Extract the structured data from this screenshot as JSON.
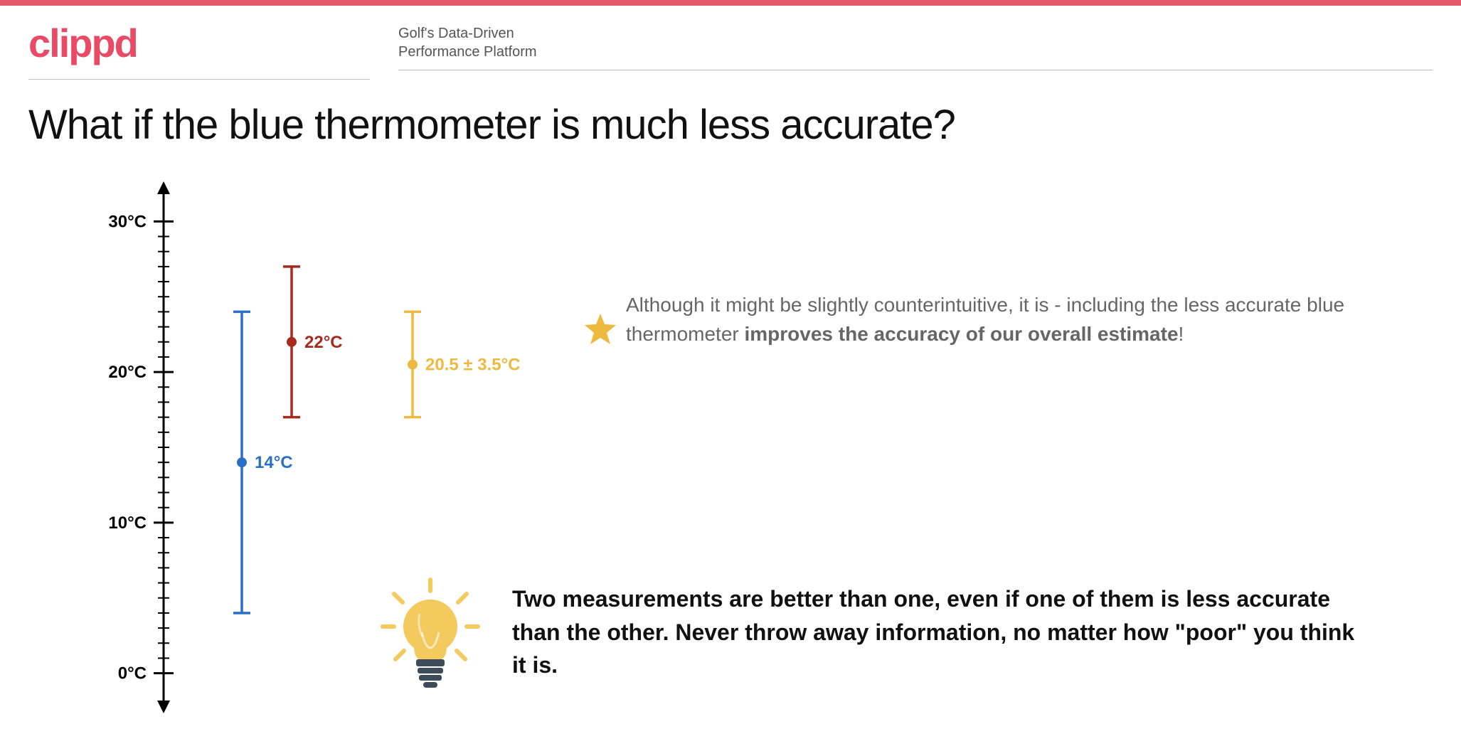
{
  "header": {
    "logo": "clippd",
    "tagline_line1": "Golf's Data-Driven",
    "tagline_line2": "Performance Platform"
  },
  "title": "What if the blue thermometer is much less accurate?",
  "axis": {
    "min": -2,
    "max": 32,
    "tick_step": 1,
    "label_step": 10,
    "labels": [
      "0°C",
      "10°C",
      "20°C",
      "30°C"
    ],
    "label_values": [
      0,
      10,
      20,
      30
    ],
    "color": "#000000",
    "label_fontsize": 24,
    "label_fontweight": "700"
  },
  "series": [
    {
      "x_offset": 110,
      "value": 14,
      "low": 4,
      "high": 24,
      "label": "14°C",
      "color": "#2a6fc7",
      "label_color": "#2a6fc7"
    },
    {
      "x_offset": 180,
      "value": 22,
      "low": 17,
      "high": 27,
      "label": "22°C",
      "color": "#a82a1e",
      "label_color": "#a82a1e"
    },
    {
      "x_offset": 350,
      "value": 20.5,
      "low": 17,
      "high": 24,
      "label": "20.5 ± 3.5°C",
      "color": "#eeb93f",
      "label_color": "#eeb93f"
    }
  ],
  "series_style": {
    "line_width": 3.5,
    "cap_half_width": 12,
    "dot_radius": 7,
    "label_fontsize": 24,
    "label_fontweight": "700",
    "label_dx": 18
  },
  "star": {
    "color": "#eeb93f"
  },
  "bulb": {
    "glass_color": "#f4c95d",
    "base_color": "#3e4b5b",
    "ray_color": "#f4c95d"
  },
  "explain": {
    "pre": "Although it might be slightly counterintuitive, it is - including the less accurate blue thermometer ",
    "bold": "improves the accuracy of our overall estimate",
    "post": "!"
  },
  "takeaway": "Two measurements are better than one, even if one of them is less accurate than the other. Never throw away information, no matter how \"poor\" you think it is."
}
